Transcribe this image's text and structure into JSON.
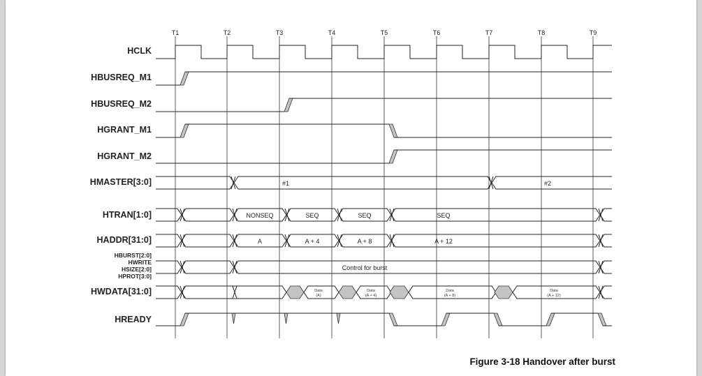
{
  "figure": {
    "caption": "Figure 3-18 Handover after burst",
    "clock_ticks": [
      "T1",
      "T2",
      "T3",
      "T4",
      "T5",
      "T6",
      "T7",
      "T8",
      "T9"
    ],
    "signals": {
      "hclk": "HCLK",
      "hbusreq_m1": "HBUSREQ_M1",
      "hbusreq_m2": "HBUSREQ_M2",
      "hgrant_m1": "HGRANT_M1",
      "hgrant_m2": "HGRANT_M2",
      "hmaster": "HMASTER[3:0]",
      "htran": "HTRAN[1:0]",
      "haddr": "HADDR[31:0]",
      "control": [
        "HBURST[2:0]",
        "HWRITE",
        "HSIZE[2:0]",
        "HPROT[3:0]"
      ],
      "hwdata": "HWDATA[31:0]",
      "hready": "HREADY"
    },
    "bus_values": {
      "hmaster": [
        "#1",
        "#2"
      ],
      "htran": [
        "NONSEQ",
        "SEQ",
        "SEQ",
        "SEQ"
      ],
      "haddr": [
        "A",
        "A + 4",
        "A + 8",
        "A + 12"
      ],
      "control": "Control for burst",
      "hwdata": [
        {
          "line1": "Data",
          "line2": "(A)"
        },
        {
          "line1": "Data",
          "line2": "(A + 4)"
        },
        {
          "line1": "Data",
          "line2": "(A + 8)"
        },
        {
          "line1": "Data",
          "line2": "(A + 12)"
        }
      ]
    }
  }
}
